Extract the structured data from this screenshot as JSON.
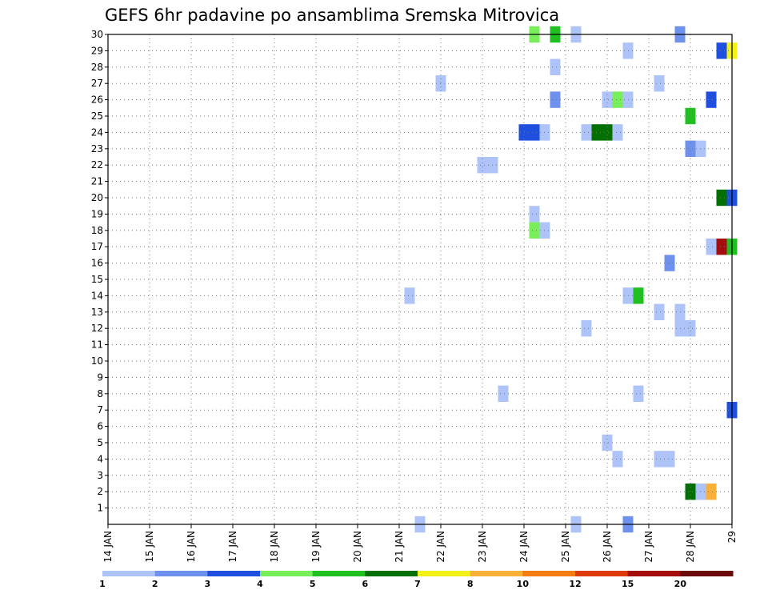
{
  "chart_data": {
    "type": "heatmap",
    "title": "GEFS 6hr padavine po ansamblima Sremska Mitrovica",
    "xlabel": "",
    "ylabel": "",
    "x_tick_labels": [
      "14 JAN",
      "15 JAN",
      "16 JAN",
      "17 JAN",
      "18 JAN",
      "19 JAN",
      "20 JAN",
      "21 JAN",
      "22 JAN",
      "23 JAN",
      "24 JAN",
      "25 JAN",
      "26 JAN",
      "27 JAN",
      "28 JAN",
      "29"
    ],
    "xlim_days": [
      14,
      29
    ],
    "y_tick_labels": [
      "1",
      "2",
      "3",
      "4",
      "5",
      "6",
      "7",
      "8",
      "9",
      "10",
      "11",
      "12",
      "13",
      "14",
      "15",
      "16",
      "17",
      "18",
      "19",
      "20",
      "21",
      "22",
      "23",
      "24",
      "25",
      "26",
      "27",
      "28",
      "29",
      "30"
    ],
    "ylim": [
      0,
      30
    ],
    "grid": true,
    "colorbar": {
      "labels": [
        "1",
        "2",
        "3",
        "4",
        "5",
        "6",
        "7",
        "8",
        "10",
        "12",
        "15",
        "20"
      ],
      "colors": [
        "#aec4f8",
        "#6e91ee",
        "#1f4fdf",
        "#78ee5a",
        "#1fc01f",
        "#037003",
        "#f4f01a",
        "#f8b039",
        "#f57c12",
        "#dd3a0d",
        "#a50e0e",
        "#6b0a0a"
      ]
    },
    "cells": [
      {
        "member": 30,
        "day": 24.25,
        "class": 4
      },
      {
        "member": 30,
        "day": 24.75,
        "class": 5
      },
      {
        "member": 30,
        "day": 25.25,
        "class": 1
      },
      {
        "member": 30,
        "day": 27.75,
        "class": 2
      },
      {
        "member": 29,
        "day": 26.5,
        "class": 1
      },
      {
        "member": 29,
        "day": 28.75,
        "class": 3
      },
      {
        "member": 29,
        "day": 29.0,
        "class": 7
      },
      {
        "member": 28,
        "day": 24.75,
        "class": 1
      },
      {
        "member": 27,
        "day": 22.0,
        "class": 1
      },
      {
        "member": 27,
        "day": 27.25,
        "class": 1
      },
      {
        "member": 26,
        "day": 24.75,
        "class": 2
      },
      {
        "member": 26,
        "day": 26.0,
        "class": 1
      },
      {
        "member": 26,
        "day": 26.25,
        "class": 4
      },
      {
        "member": 26,
        "day": 26.5,
        "class": 1
      },
      {
        "member": 26,
        "day": 28.5,
        "class": 3
      },
      {
        "member": 25,
        "day": 28.0,
        "class": 5
      },
      {
        "member": 24,
        "day": 24.0,
        "class": 3
      },
      {
        "member": 24,
        "day": 24.25,
        "class": 3
      },
      {
        "member": 24,
        "day": 24.5,
        "class": 1
      },
      {
        "member": 24,
        "day": 25.5,
        "class": 1
      },
      {
        "member": 24,
        "day": 25.75,
        "class": 6
      },
      {
        "member": 24,
        "day": 26.0,
        "class": 6
      },
      {
        "member": 24,
        "day": 26.25,
        "class": 1
      },
      {
        "member": 23,
        "day": 28.0,
        "class": 2
      },
      {
        "member": 23,
        "day": 28.25,
        "class": 1
      },
      {
        "member": 22,
        "day": 23.0,
        "class": 1
      },
      {
        "member": 22,
        "day": 23.25,
        "class": 1
      },
      {
        "member": 20,
        "day": 28.75,
        "class": 6
      },
      {
        "member": 20,
        "day": 29.0,
        "class": 3
      },
      {
        "member": 19,
        "day": 24.25,
        "class": 1
      },
      {
        "member": 18,
        "day": 24.25,
        "class": 4
      },
      {
        "member": 18,
        "day": 24.5,
        "class": 1
      },
      {
        "member": 17,
        "day": 28.5,
        "class": 1
      },
      {
        "member": 17,
        "day": 28.75,
        "class": 11
      },
      {
        "member": 17,
        "day": 29.0,
        "class": 5
      },
      {
        "member": 16,
        "day": 27.5,
        "class": 2
      },
      {
        "member": 14,
        "day": 21.25,
        "class": 1
      },
      {
        "member": 14,
        "day": 26.5,
        "class": 1
      },
      {
        "member": 14,
        "day": 26.75,
        "class": 5
      },
      {
        "member": 13,
        "day": 27.25,
        "class": 1
      },
      {
        "member": 13,
        "day": 27.75,
        "class": 1
      },
      {
        "member": 12,
        "day": 25.5,
        "class": 1
      },
      {
        "member": 12,
        "day": 27.75,
        "class": 1
      },
      {
        "member": 12,
        "day": 28.0,
        "class": 1
      },
      {
        "member": 8,
        "day": 23.5,
        "class": 1
      },
      {
        "member": 8,
        "day": 26.75,
        "class": 1
      },
      {
        "member": 7,
        "day": 29.0,
        "class": 3
      },
      {
        "member": 5,
        "day": 26.0,
        "class": 1
      },
      {
        "member": 4,
        "day": 26.25,
        "class": 1
      },
      {
        "member": 4,
        "day": 27.25,
        "class": 1
      },
      {
        "member": 4,
        "day": 27.5,
        "class": 1
      },
      {
        "member": 2,
        "day": 28.0,
        "class": 6
      },
      {
        "member": 2,
        "day": 28.25,
        "class": 1
      },
      {
        "member": 2,
        "day": 28.5,
        "class": 8
      },
      {
        "member": 0,
        "day": 21.5,
        "class": 1
      },
      {
        "member": 0,
        "day": 25.25,
        "class": 1
      },
      {
        "member": 0,
        "day": 26.5,
        "class": 2
      }
    ]
  }
}
